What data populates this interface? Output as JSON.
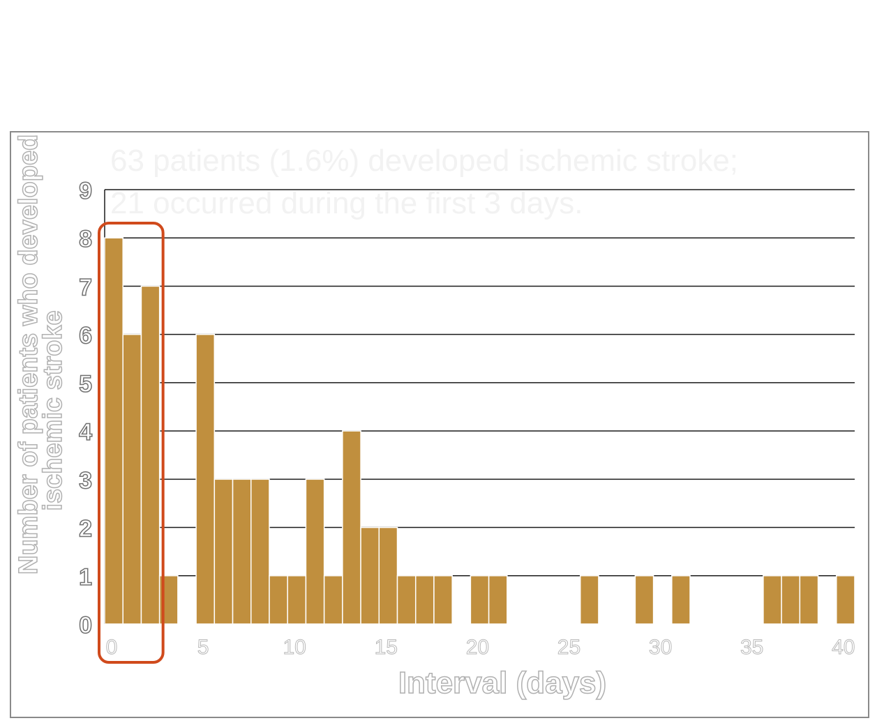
{
  "colors": {
    "bar": "#c08f3e",
    "bar_edge": "#ffffff",
    "grid": "#1a1a1a",
    "highlight": "#d04a1c",
    "frame": "#8a8a8a"
  },
  "annotation": {
    "line1": "63 patients (1.6%) developed ischemic stroke;",
    "line2": "21 occurred during the first 3 days."
  },
  "chart_data": {
    "type": "bar",
    "title": "",
    "ylabel": [
      "Number of patients who developed",
      "ischemic stroke"
    ],
    "xlabel": "Interval (days)",
    "ylim": [
      0,
      9
    ],
    "yticks": [
      "0",
      "1",
      "2",
      "3",
      "4",
      "5",
      "6",
      "7",
      "8",
      "9"
    ],
    "xlim": [
      0,
      41
    ],
    "xticks": [
      "0",
      "5",
      "10",
      "15",
      "20",
      "25",
      "30",
      "35",
      "40"
    ],
    "grid": true,
    "x": [
      0,
      1,
      2,
      3,
      4,
      5,
      6,
      7,
      8,
      9,
      10,
      11,
      12,
      13,
      14,
      15,
      16,
      17,
      18,
      19,
      20,
      21,
      22,
      23,
      24,
      25,
      26,
      27,
      28,
      29,
      30,
      31,
      32,
      33,
      34,
      35,
      36,
      37,
      38,
      39,
      40
    ],
    "values": [
      8,
      6,
      7,
      1,
      0,
      6,
      3,
      3,
      3,
      1,
      1,
      3,
      1,
      4,
      2,
      2,
      1,
      1,
      1,
      0,
      1,
      1,
      0,
      0,
      0,
      0,
      1,
      0,
      0,
      1,
      0,
      1,
      0,
      0,
      0,
      0,
      1,
      1,
      1,
      0,
      1
    ],
    "highlight_days": [
      0,
      2
    ]
  }
}
